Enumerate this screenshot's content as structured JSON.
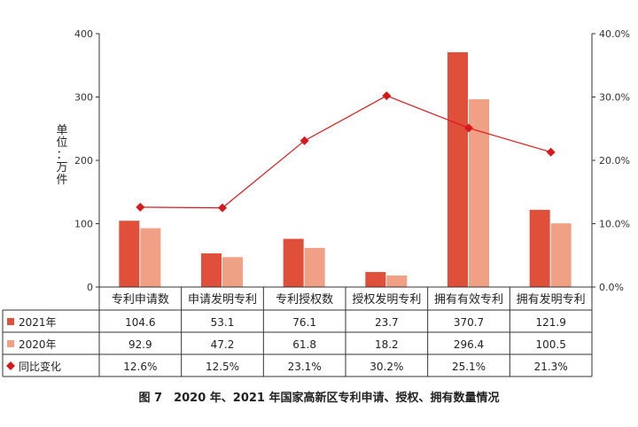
{
  "caption": "图 7　2020 年、2021 年国家高新区专利申请、授权、拥有数量情况",
  "chart_data": {
    "type": "bar",
    "categories": [
      "专利申请数",
      "申请发明专利",
      "专利授权数",
      "授权发明专利",
      "拥有有效专利",
      "拥有发明专利"
    ],
    "series": [
      {
        "name": "2021年",
        "type": "bar",
        "axis": "left",
        "color": "#e04f3a",
        "values": [
          104.6,
          53.1,
          76.1,
          23.7,
          370.7,
          121.9
        ],
        "labels": [
          "104.6",
          "53.1",
          "76.1",
          "23.7",
          "370.7",
          "121.9"
        ]
      },
      {
        "name": "2020年",
        "type": "bar",
        "axis": "left",
        "color": "#f0a084",
        "values": [
          92.9,
          47.2,
          61.8,
          18.2,
          296.4,
          100.5
        ],
        "labels": [
          "92.9",
          "47.2",
          "61.8",
          "18.2",
          "296.4",
          "100.5"
        ]
      },
      {
        "name": "同比变化",
        "type": "line",
        "axis": "right",
        "color": "#d7191c",
        "values": [
          12.6,
          12.5,
          23.1,
          30.2,
          25.1,
          21.3
        ],
        "labels": [
          "12.6%",
          "12.5%",
          "23.1%",
          "30.2%",
          "25.1%",
          "21.3%"
        ]
      }
    ],
    "ylabel": "单位：万件",
    "ylim": [
      0,
      400
    ],
    "yticks": [
      "0",
      "100",
      "200",
      "300",
      "400"
    ],
    "y2lim": [
      0,
      40
    ],
    "y2ticks": [
      "0.0%",
      "10.0%",
      "20.0%",
      "30.0%",
      "40.0%"
    ],
    "legend": "data-table-rows",
    "grid": false
  }
}
